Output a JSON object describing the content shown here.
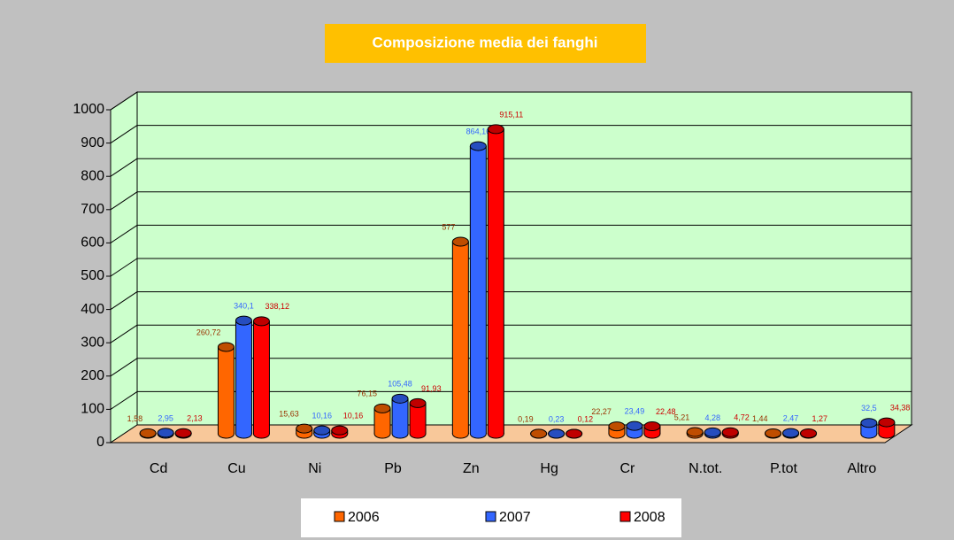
{
  "chart_data": {
    "type": "bar3d",
    "title": "Composizione media dei fanghi",
    "categories": [
      "Cd",
      "Cu",
      "Ni",
      "Pb",
      "Zn",
      "Hg",
      "Cr",
      "N.tot.",
      "P.tot",
      "Altro"
    ],
    "series": [
      {
        "name": "2006",
        "color": "#ff6600",
        "label_color": "#993300",
        "values": [
          1.58,
          260.72,
          15.63,
          76.15,
          577,
          0.19,
          22.27,
          5.21,
          1.44,
          null
        ],
        "value_labels": [
          "1,58",
          "260,72",
          "15,63",
          "76,15",
          "577",
          "0,19",
          "22,27",
          "5,21",
          "1,44",
          null
        ]
      },
      {
        "name": "2007",
        "color": "#3366ff",
        "label_color": "#3366ff",
        "values": [
          2.95,
          340.1,
          10.16,
          105.48,
          864.16,
          0.23,
          23.49,
          4.28,
          2.47,
          32.5
        ],
        "value_labels": [
          "2,95",
          "340,1",
          "10,16",
          "105,48",
          "864,16",
          "0,23",
          "23,49",
          "4,28",
          "2,47",
          "32,5"
        ]
      },
      {
        "name": "2008",
        "color": "#ff0000",
        "label_color": "#cc0000",
        "values": [
          2.13,
          338.12,
          10.16,
          91.93,
          915.11,
          0.12,
          22.48,
          4.72,
          1.27,
          34.38
        ],
        "value_labels": [
          "2,13",
          "338,12",
          "10,16",
          "91,93",
          "915,11",
          "0,12",
          "22,48",
          "4,72",
          "1,27",
          "34,38"
        ]
      }
    ],
    "ylim": [
      0,
      1000
    ],
    "yticks": [
      0,
      100,
      200,
      300,
      400,
      500,
      600,
      700,
      800,
      900,
      1000
    ],
    "grid": true,
    "legend": "bottom"
  }
}
